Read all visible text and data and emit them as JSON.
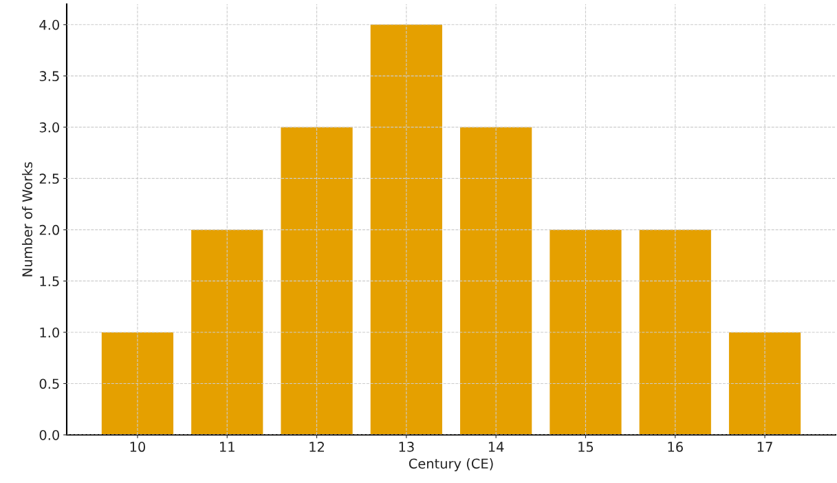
{
  "chart_data": {
    "type": "bar",
    "xlabel": "Century (CE)",
    "ylabel": "Number of Works",
    "categories": [
      "10",
      "11",
      "12",
      "13",
      "14",
      "15",
      "16",
      "17"
    ],
    "values": [
      1,
      2,
      3,
      4,
      3,
      2,
      2,
      1
    ],
    "color": "#e5a000",
    "ylim": [
      0,
      4.2
    ],
    "yticks": [
      {
        "value": 0,
        "label": "0.0"
      },
      {
        "value": 0.5,
        "label": "0.5"
      },
      {
        "value": 1,
        "label": "1.0"
      },
      {
        "value": 1.5,
        "label": "1.5"
      },
      {
        "value": 2,
        "label": "2.0"
      },
      {
        "value": 2.5,
        "label": "2.5"
      },
      {
        "value": 3,
        "label": "3.0"
      },
      {
        "value": 3.5,
        "label": "3.5"
      },
      {
        "value": 4,
        "label": "4.0"
      }
    ],
    "grid": true,
    "line_style": "dashed"
  }
}
